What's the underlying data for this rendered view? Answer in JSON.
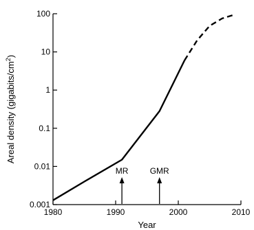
{
  "chart_data": {
    "type": "line",
    "xlabel": "Year",
    "ylabel": "Areal density (gigabits/cm2)",
    "ylabel_main": "Areal density (gigabits/cm",
    "ylabel_sup": "2",
    "ylabel_tail": ")",
    "yscale": "log",
    "xlim": [
      1980,
      2010
    ],
    "ylim": [
      0.001,
      100
    ],
    "x_ticks": [
      {
        "value": 1980,
        "label": "1980"
      },
      {
        "value": 1990,
        "label": "1990"
      },
      {
        "value": 2000,
        "label": "2000"
      },
      {
        "value": 2010,
        "label": "2010"
      }
    ],
    "y_ticks": [
      {
        "value": 0.001,
        "label": "0.001"
      },
      {
        "value": 0.01,
        "label": "0.01"
      },
      {
        "value": 0.1,
        "label": "0.1"
      },
      {
        "value": 1,
        "label": "1"
      },
      {
        "value": 10,
        "label": "10"
      },
      {
        "value": 100,
        "label": "100"
      }
    ],
    "grid": false,
    "series": [
      {
        "style": "solid",
        "points": [
          {
            "x": 1980,
            "y": 0.0013
          },
          {
            "x": 1985,
            "y": 0.004
          },
          {
            "x": 1991,
            "y": 0.015
          },
          {
            "x": 1997,
            "y": 0.28
          },
          {
            "x": 2001,
            "y": 6
          }
        ]
      },
      {
        "style": "dashed",
        "points": [
          {
            "x": 2001,
            "y": 6
          },
          {
            "x": 2003,
            "y": 20
          },
          {
            "x": 2005,
            "y": 48
          },
          {
            "x": 2007,
            "y": 75
          },
          {
            "x": 2009,
            "y": 95
          }
        ]
      }
    ],
    "annotations": [
      {
        "label": "MR",
        "x": 1991
      },
      {
        "label": "GMR",
        "x": 1997
      }
    ]
  }
}
